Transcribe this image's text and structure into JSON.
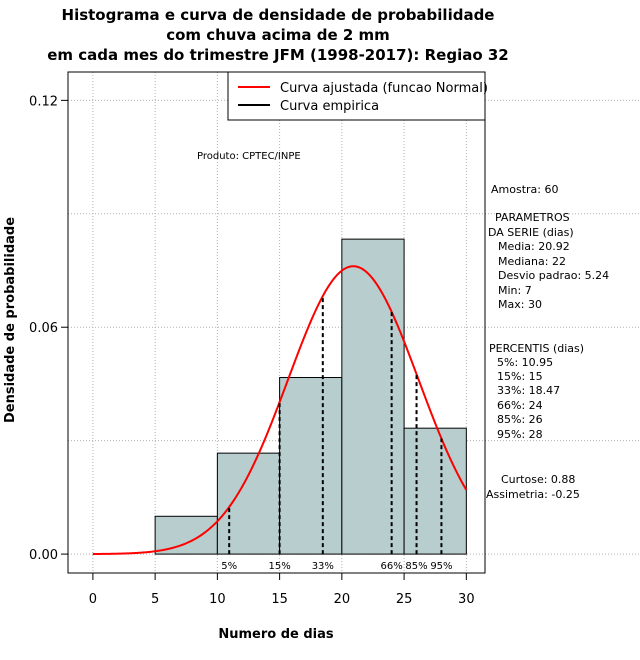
{
  "chart_data": {
    "type": "histogram",
    "title": [
      "Histograma e curva de densidade de probabilidade",
      "com chuva acima de 2 mm",
      "em cada mes do trimestre JFM (1998-2017): Regiao 32"
    ],
    "xlabel": "Numero de dias",
    "ylabel": "Densidade de probabilidade",
    "xlim": [
      -2,
      31.5
    ],
    "ylim": [
      -0.005,
      0.1275
    ],
    "xticks": [
      "0",
      "5",
      "10",
      "15",
      "20",
      "25",
      "30"
    ],
    "yticks": [
      "0.00",
      "0.06",
      "0.12"
    ],
    "bins": [
      {
        "start": 5,
        "end": 10,
        "density": 0.01
      },
      {
        "start": 10,
        "end": 15,
        "density": 0.0267
      },
      {
        "start": 15,
        "end": 20,
        "density": 0.0467
      },
      {
        "start": 20,
        "end": 25,
        "density": 0.0833
      },
      {
        "start": 25,
        "end": 30,
        "density": 0.0333
      }
    ],
    "bar_color": "#b8cece",
    "fitted_curve": {
      "mean": 20.92,
      "sd": 5.24,
      "color": "#ff0000"
    },
    "percentile_lines": [
      {
        "label": "5%",
        "x": 10.95
      },
      {
        "label": "15%",
        "x": 15
      },
      {
        "label": "33%",
        "x": 18.47
      },
      {
        "label": "66%",
        "x": 24
      },
      {
        "label": "85%",
        "x": 26
      },
      {
        "label": "95%",
        "x": 28
      }
    ],
    "legend": [
      {
        "label": "Curva ajustada (funcao Normal)",
        "color": "#ff0000"
      },
      {
        "label": "Curva empirica",
        "color": "#000000"
      }
    ],
    "annotation": "Produto: CPTEC/INPE"
  },
  "side_panel": {
    "lines": [
      "Amostra: 60",
      "PARAMETROS",
      "DA SERIE (dias)",
      "Media: 20.92",
      "Mediana: 22",
      "Desvio padrao: 5.24",
      "Min: 7",
      "Max: 30",
      "PERCENTIS (dias)",
      "5%: 10.95",
      "15%: 15",
      "33%: 18.47",
      "66%: 24",
      "85%: 26",
      "95%: 28",
      "Curtose: 0.88",
      "Assimetria: -0.25"
    ]
  }
}
